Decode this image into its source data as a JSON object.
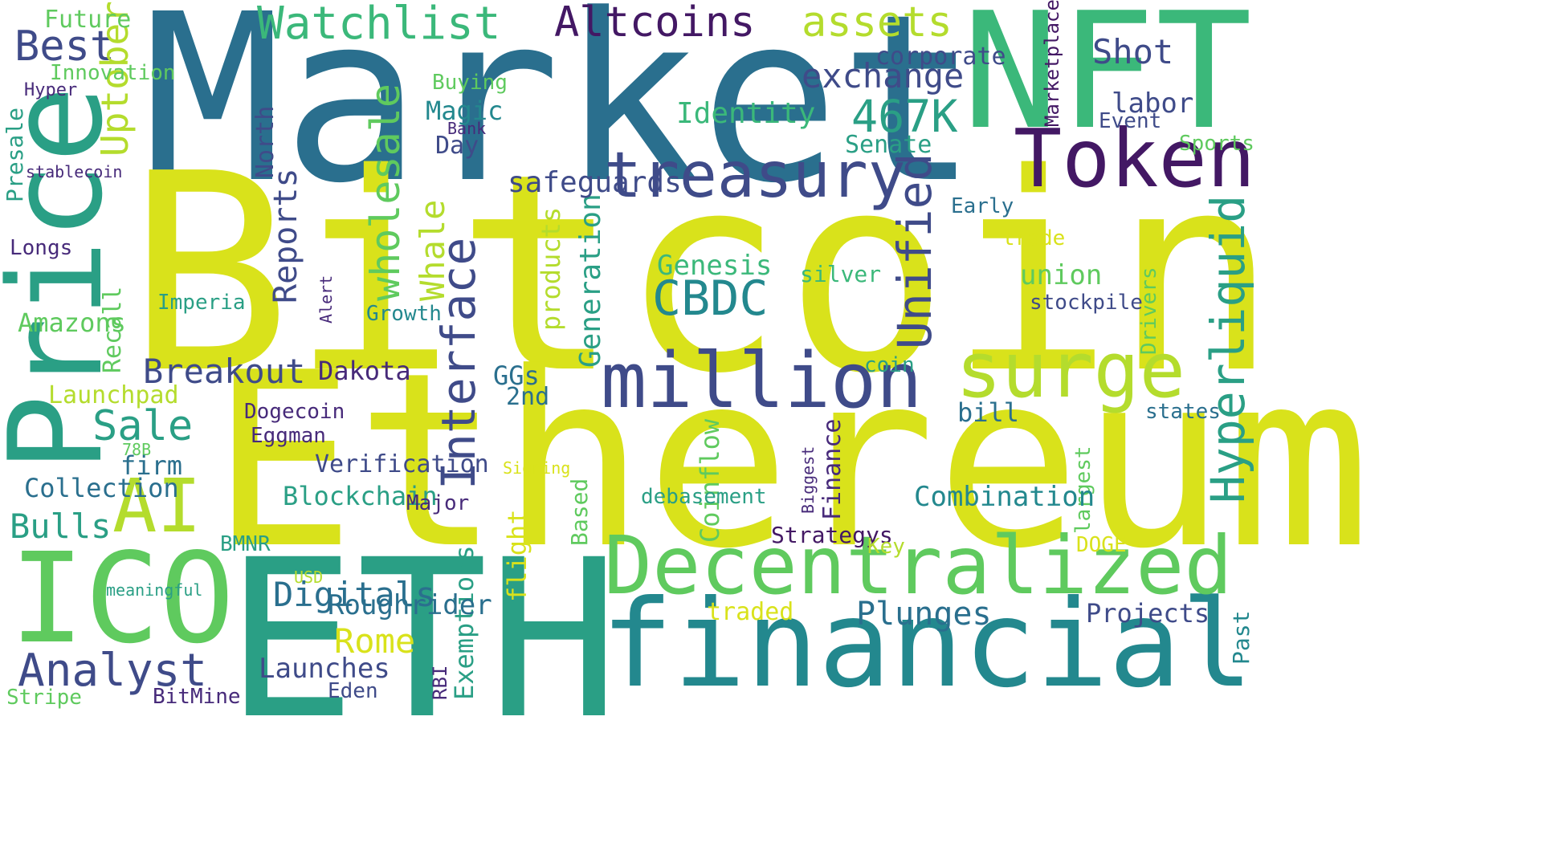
{
  "colors": {
    "yellow": "#d9e21b",
    "lime": "#b4dc2d",
    "lightgreen": "#5fca5e",
    "green": "#3bb87a",
    "teal": "#2a9f85",
    "tealblue": "#23888e",
    "blue": "#2a6f8e",
    "indigo": "#3f4b89",
    "purple": "#472a7a",
    "deep": "#431864",
    "background": "#ffffff"
  },
  "words": [
    "Market",
    "Bitcoin",
    "Ethereum",
    "ETH",
    "NFT",
    "Price",
    "ICO",
    "financial",
    "Decentralized",
    "Token",
    "treasury",
    "million",
    "surge",
    "Hyperliquid",
    "Watchlist",
    "Altcoins",
    "assets",
    "Best",
    "exchange",
    "Shot",
    "Interface",
    "Unified",
    "wholesale",
    "CBDC",
    "Analyst",
    "AI",
    "Bulls",
    "Breakout",
    "Sale",
    "467K",
    "Whale",
    "North",
    "Reports",
    "Recall",
    "Generation",
    "Presale",
    "Uptober",
    "Marketplace",
    "Drivers",
    "products",
    "Alert",
    "Based",
    "flight",
    "Coinflow",
    "Finance",
    "Biggest",
    "largest",
    "Past",
    "RBI",
    "Exemptions",
    "Future",
    "Innovation",
    "Hyper",
    "Buying",
    "Magic",
    "Bank",
    "Day",
    "Identity",
    "Senate",
    "corporate",
    "labor",
    "Event",
    "Sports",
    "safeguards",
    "stablecoin",
    "Early",
    "trade",
    "Longs",
    "Genesis",
    "silver",
    "union",
    "stockpile",
    "Imperia",
    "Growth",
    "Amazons",
    "Dakota",
    "coin",
    "GGs",
    "2nd",
    "Launchpad",
    "Dogecoin",
    "bill",
    "states",
    "Eggman",
    "78B",
    "firm",
    "Verification",
    "Signing",
    "Collection",
    "Blockchain",
    "debasement",
    "Combination",
    "Major",
    "Strategys",
    "BMNR",
    "Key",
    "DOGE",
    "USD",
    "meaningful",
    "Digitals",
    "Roughrider",
    "traded",
    "Plunges",
    "Projects",
    "Rome",
    "Launches",
    "Eden",
    "Stripe",
    "BitMine"
  ]
}
